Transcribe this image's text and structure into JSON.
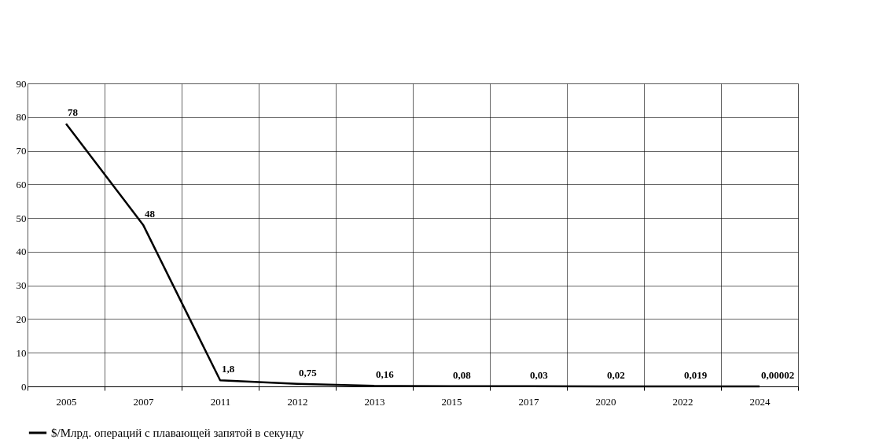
{
  "chart_data": {
    "type": "line",
    "categories": [
      "2005",
      "2007",
      "2011",
      "2012",
      "2013",
      "2015",
      "2017",
      "2020",
      "2022",
      "2024"
    ],
    "series": [
      {
        "name": "$/Млрд. операций с плавающей запятой в секунду",
        "color": "#000000",
        "values": [
          78,
          48,
          1.8,
          0.75,
          0.16,
          0.08,
          0.03,
          0.02,
          0.019,
          2e-05
        ],
        "value_labels": [
          "78",
          "48",
          "1,8",
          "0,75",
          "0,16",
          "0,08",
          "0,03",
          "0,02",
          "0,019",
          "0,00002"
        ]
      }
    ],
    "ylim": [
      0,
      90
    ],
    "yticks": [
      0,
      10,
      20,
      30,
      40,
      50,
      60,
      70,
      80,
      90
    ],
    "grid": true,
    "legend": "bottom",
    "marker": "none",
    "line_style": "solid"
  }
}
